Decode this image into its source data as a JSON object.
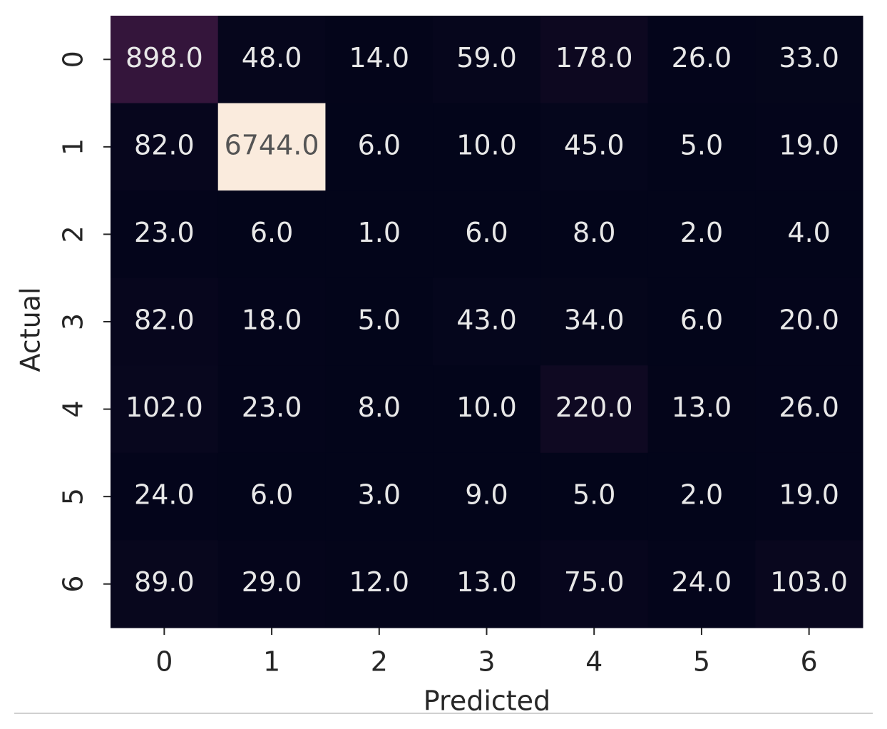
{
  "chart_data": {
    "type": "heatmap",
    "colormap": "rocket",
    "x_label": "Predicted",
    "y_label": "Actual",
    "x_categories": [
      "0",
      "1",
      "2",
      "3",
      "4",
      "5",
      "6"
    ],
    "y_categories": [
      "0",
      "1",
      "2",
      "3",
      "4",
      "5",
      "6"
    ],
    "values": [
      [
        898,
        48,
        14,
        59,
        178,
        26,
        33
      ],
      [
        82,
        6744,
        6,
        10,
        45,
        5,
        19
      ],
      [
        23,
        6,
        1,
        6,
        8,
        2,
        4
      ],
      [
        82,
        18,
        5,
        43,
        34,
        6,
        20
      ],
      [
        102,
        23,
        8,
        10,
        220,
        13,
        26
      ],
      [
        24,
        6,
        3,
        9,
        5,
        2,
        19
      ],
      [
        89,
        29,
        12,
        13,
        75,
        24,
        103
      ]
    ],
    "value_labels": [
      [
        "898.0",
        "48.0",
        "14.0",
        "59.0",
        "178.0",
        "26.0",
        "33.0"
      ],
      [
        "82.0",
        "6744.0",
        "6.0",
        "10.0",
        "45.0",
        "5.0",
        "19.0"
      ],
      [
        "23.0",
        "6.0",
        "1.0",
        "6.0",
        "8.0",
        "2.0",
        "4.0"
      ],
      [
        "82.0",
        "18.0",
        "5.0",
        "43.0",
        "34.0",
        "6.0",
        "20.0"
      ],
      [
        "102.0",
        "23.0",
        "8.0",
        "10.0",
        "220.0",
        "13.0",
        "26.0"
      ],
      [
        "24.0",
        "6.0",
        "3.0",
        "9.0",
        "5.0",
        "2.0",
        "19.0"
      ],
      [
        "89.0",
        "29.0",
        "12.0",
        "13.0",
        "75.0",
        "24.0",
        "103.0"
      ]
    ]
  }
}
